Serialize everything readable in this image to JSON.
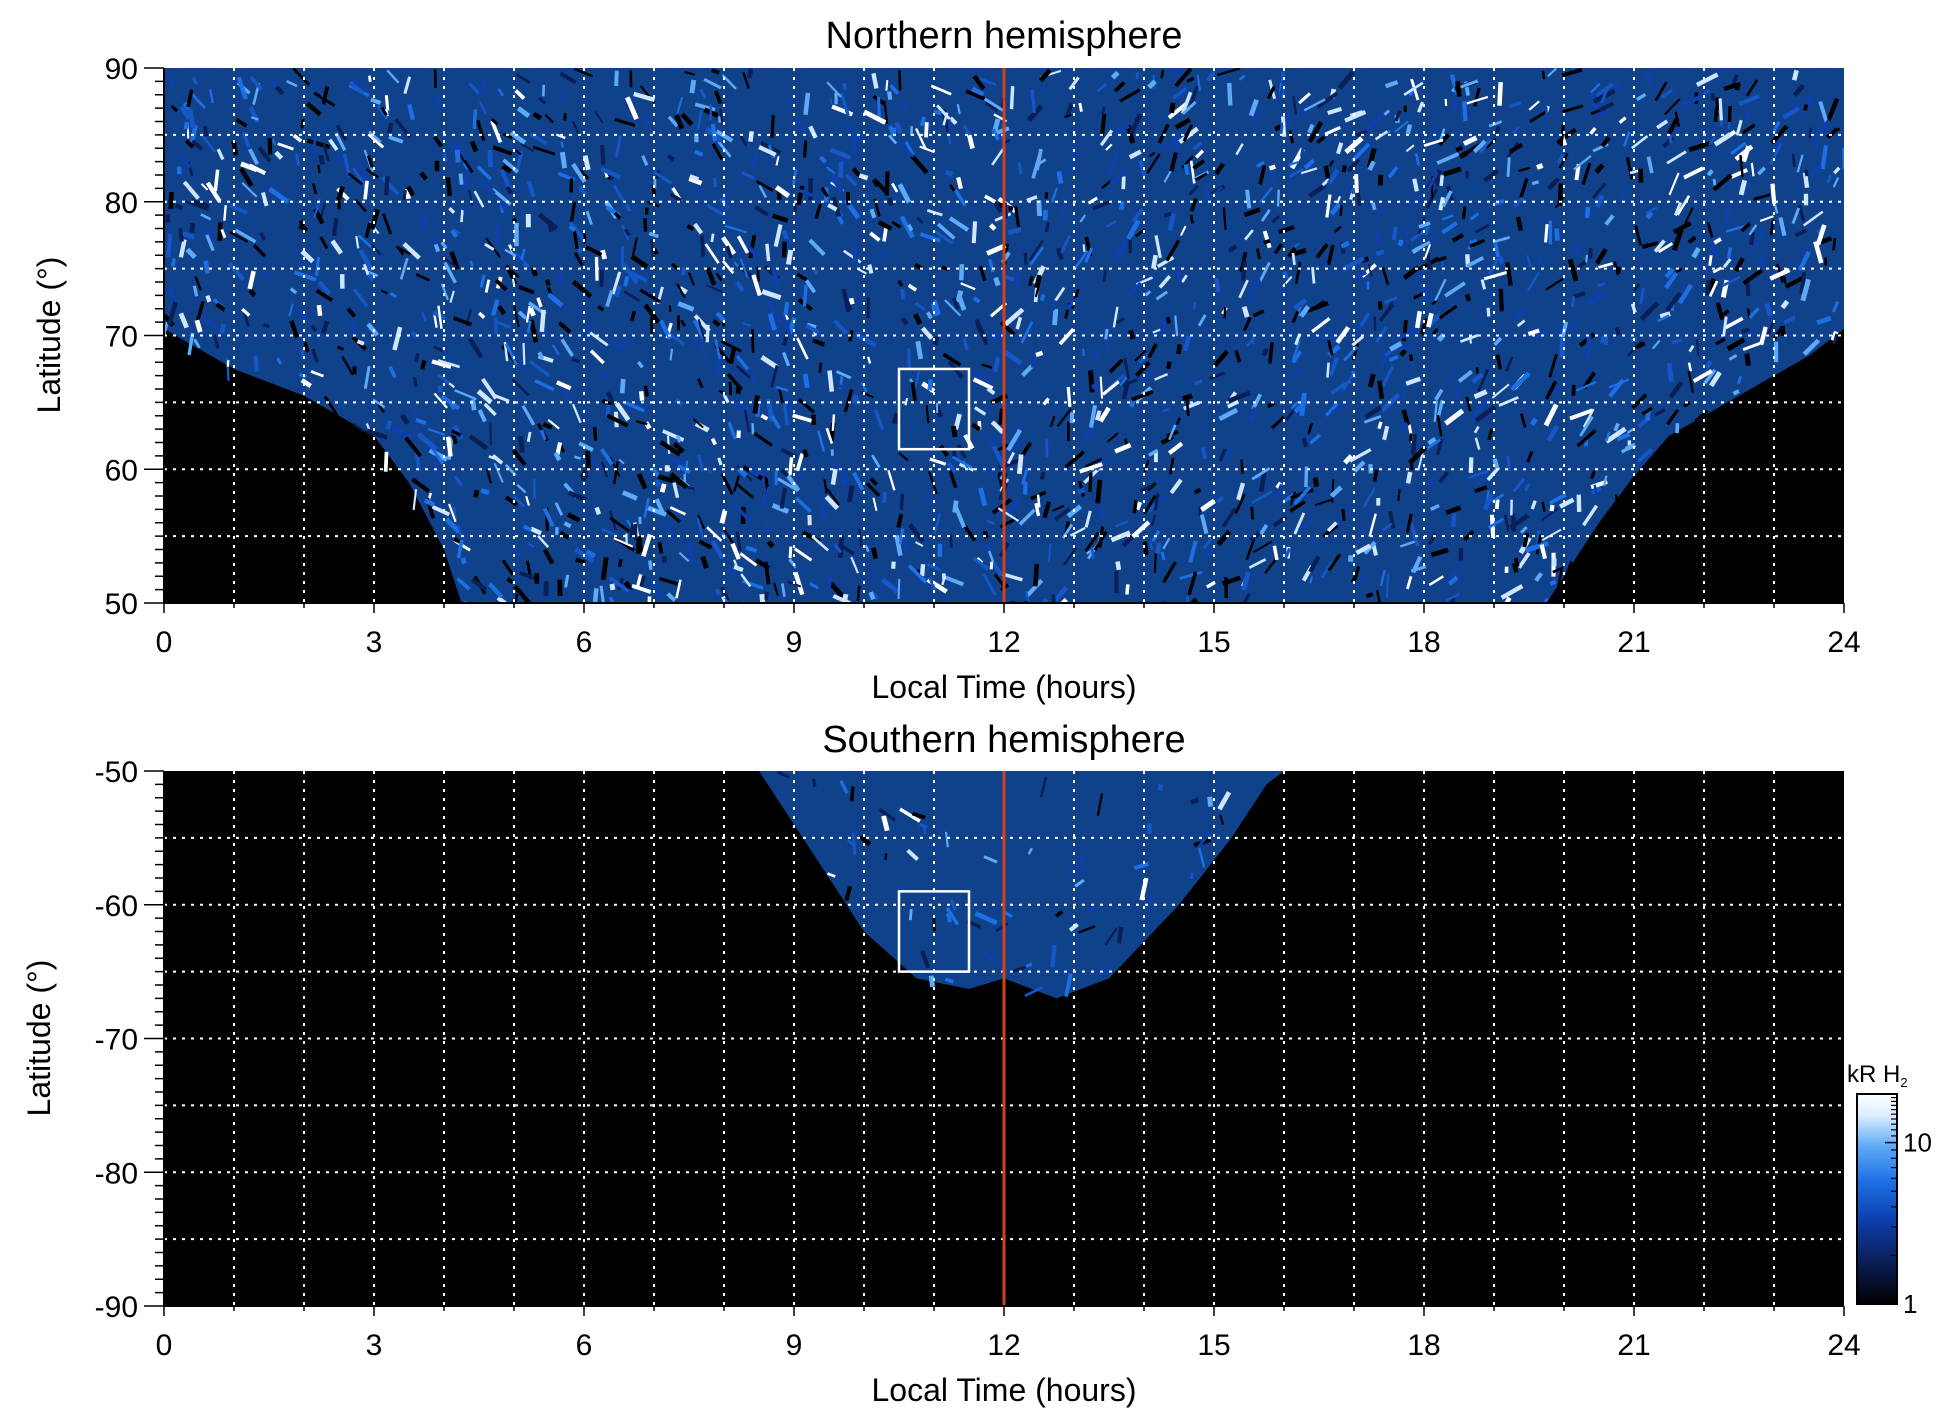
{
  "chart_data": [
    {
      "type": "heatmap",
      "title": "Northern hemisphere",
      "xlabel": "Local Time (hours)",
      "ylabel": "Latitude (°)",
      "xlim": [
        0,
        24
      ],
      "ylim": [
        50,
        90
      ],
      "xticks": [
        0,
        3,
        6,
        9,
        12,
        15,
        18,
        21,
        24
      ],
      "xtick_labels": [
        "0",
        "3",
        "6",
        "9",
        "12",
        "15",
        "18",
        "21",
        "24"
      ],
      "yticks": [
        50,
        60,
        70,
        80,
        90
      ],
      "ytick_labels": [
        "50",
        "60",
        "70",
        "80",
        "90"
      ],
      "grid": true,
      "grid_x": [
        1,
        2,
        3,
        4,
        5,
        6,
        7,
        8,
        9,
        10,
        11,
        13,
        14,
        15,
        16,
        17,
        18,
        19,
        20,
        21,
        22,
        23
      ],
      "grid_y": [
        55,
        60,
        65,
        70,
        75,
        80,
        85
      ],
      "reference_line": {
        "x": 12,
        "color": "#d2401c"
      },
      "highlight_box": {
        "x": [
          10.5,
          11.5
        ],
        "y": [
          61.5,
          67.5
        ],
        "color": "#ffffff"
      },
      "coverage_lower_boundary": [
        {
          "x": 0,
          "y": 70.5
        },
        {
          "x": 1,
          "y": 67.5
        },
        {
          "x": 2,
          "y": 65.5
        },
        {
          "x": 3,
          "y": 62.5
        },
        {
          "x": 3.5,
          "y": 59
        },
        {
          "x": 4,
          "y": 54
        },
        {
          "x": 4.25,
          "y": 50
        },
        {
          "x": 19.75,
          "y": 50
        },
        {
          "x": 20.5,
          "y": 56
        },
        {
          "x": 21,
          "y": 59.5
        },
        {
          "x": 21.5,
          "y": 62.5
        },
        {
          "x": 22.5,
          "y": 65.5
        },
        {
          "x": 23.5,
          "y": 68.5
        },
        {
          "x": 24,
          "y": 70.5
        }
      ]
    },
    {
      "type": "heatmap",
      "title": "Southern hemisphere",
      "xlabel": "Local Time (hours)",
      "ylabel": "Latitude (°)",
      "xlim": [
        0,
        24
      ],
      "ylim": [
        -90,
        -50
      ],
      "xticks": [
        0,
        3,
        6,
        9,
        12,
        15,
        18,
        21,
        24
      ],
      "xtick_labels": [
        "0",
        "3",
        "6",
        "9",
        "12",
        "15",
        "18",
        "21",
        "24"
      ],
      "yticks": [
        -90,
        -80,
        -70,
        -60,
        -50
      ],
      "ytick_labels": [
        "-90",
        "-80",
        "-70",
        "-60",
        "-50"
      ],
      "grid": true,
      "grid_x": [
        1,
        2,
        3,
        4,
        5,
        6,
        7,
        8,
        9,
        10,
        11,
        13,
        14,
        15,
        16,
        17,
        18,
        19,
        20,
        21,
        22,
        23
      ],
      "grid_y": [
        -55,
        -60,
        -65,
        -70,
        -75,
        -80,
        -85
      ],
      "reference_line": {
        "x": 12,
        "color": "#d2401c"
      },
      "highlight_box": {
        "x": [
          10.5,
          11.5
        ],
        "y": [
          -65,
          -59
        ],
        "color": "#ffffff"
      },
      "coverage_boundary": [
        {
          "x": 8.5,
          "y": -50
        },
        {
          "x": 9,
          "y": -54
        },
        {
          "x": 9.5,
          "y": -58
        },
        {
          "x": 10,
          "y": -62
        },
        {
          "x": 10.75,
          "y": -65.5
        },
        {
          "x": 11.5,
          "y": -66.3
        },
        {
          "x": 12,
          "y": -65.5
        },
        {
          "x": 12.75,
          "y": -67
        },
        {
          "x": 13.5,
          "y": -65.5
        },
        {
          "x": 14.5,
          "y": -60
        },
        {
          "x": 15.25,
          "y": -55
        },
        {
          "x": 15.75,
          "y": -51
        },
        {
          "x": 16,
          "y": -50
        }
      ],
      "colorbar": {
        "title": "kR H₂",
        "title_parts": {
          "main": "kR H",
          "subscript": "2"
        },
        "scale": "log",
        "range": [
          1,
          20
        ],
        "tick_values": [
          1,
          10
        ],
        "tick_labels": [
          "1",
          "10"
        ],
        "colors": [
          "#000000",
          "#0a1f55",
          "#0d3fae",
          "#1c6fe4",
          "#5eaaf6",
          "#dceeff",
          "#ffffff"
        ],
        "placement": "right of lower panel"
      }
    }
  ],
  "colors": {
    "background_fill": "#000000",
    "emission_blue": "#1e78ff",
    "grid": "#ffffff",
    "noon_line": "#d2401c"
  }
}
